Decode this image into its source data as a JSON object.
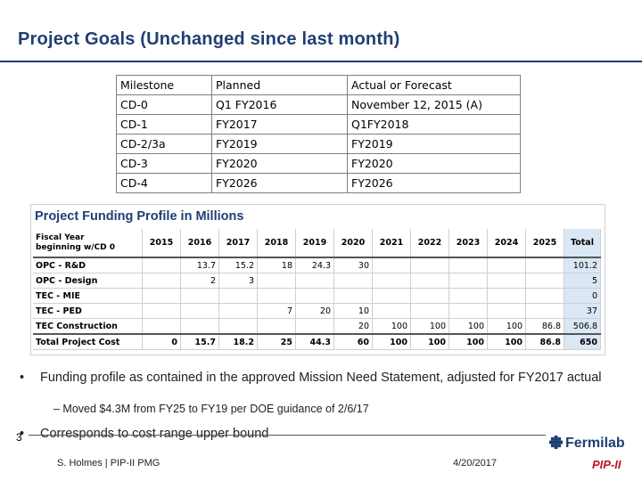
{
  "slide": {
    "title": "Project Goals (Unchanged since last month)"
  },
  "milestones": {
    "headers": [
      "Milestone",
      "Planned",
      "Actual or Forecast"
    ],
    "rows": [
      [
        "CD-0",
        "Q1 FY2016",
        "November 12, 2015 (A)"
      ],
      [
        "CD-1",
        "FY2017",
        "Q1FY2018"
      ],
      [
        "CD-2/3a",
        "FY2019",
        "FY2019"
      ],
      [
        "CD-3",
        "FY2020",
        "FY2020"
      ],
      [
        "CD-4",
        "FY2026",
        "FY2026"
      ]
    ]
  },
  "funding": {
    "title": "Project Funding Profile in Millions",
    "header_label_line1": "Fiscal Year",
    "header_label_line2": "beginning w/CD 0",
    "years": [
      "2015",
      "2016",
      "2017",
      "2018",
      "2019",
      "2020",
      "2021",
      "2022",
      "2023",
      "2024",
      "2025",
      "Total"
    ],
    "rows": [
      {
        "label": "OPC  - R&D",
        "values": [
          "",
          "13.7",
          "15.2",
          "18",
          "24.3",
          "30",
          "",
          "",
          "",
          "",
          "",
          "101.2"
        ]
      },
      {
        "label": "OPC - Design",
        "values": [
          "",
          "2",
          "3",
          "",
          "",
          "",
          "",
          "",
          "",
          "",
          "",
          "5"
        ]
      },
      {
        "label": "TEC - MIE",
        "values": [
          "",
          "",
          "",
          "",
          "",
          "",
          "",
          "",
          "",
          "",
          "",
          "0"
        ]
      },
      {
        "label": "TEC - PED",
        "values": [
          "",
          "",
          "",
          "7",
          "20",
          "10",
          "",
          "",
          "",
          "",
          "",
          "37"
        ]
      },
      {
        "label": "TEC  Construction",
        "values": [
          "",
          "",
          "",
          "",
          "",
          "20",
          "100",
          "100",
          "100",
          "100",
          "86.8",
          "506.8"
        ]
      },
      {
        "label": "Total Project Cost",
        "values": [
          "0",
          "15.7",
          "18.2",
          "25",
          "44.3",
          "60",
          "100",
          "100",
          "100",
          "100",
          "86.8",
          "650"
        ]
      }
    ]
  },
  "bullets": {
    "b1_marker": "•",
    "b1": "Funding profile as contained in the approved Mission Need Statement, adjusted for FY2017 actual",
    "sub1": "–  Moved $4.3M from FY25 to FY19 per DOE guidance of 2/6/17",
    "b2_marker": "•",
    "b2": "Corresponds to cost range upper bound"
  },
  "footer": {
    "page_number": "3",
    "author": "S. Holmes | PIP-II PMG",
    "date": "4/20/2017",
    "logo_text": "Fermilab",
    "pip_text": "PIP-II"
  },
  "colors": {
    "title": "#1f3f73",
    "total_column": "#dae7f5",
    "pip_red": "#b8152b"
  }
}
